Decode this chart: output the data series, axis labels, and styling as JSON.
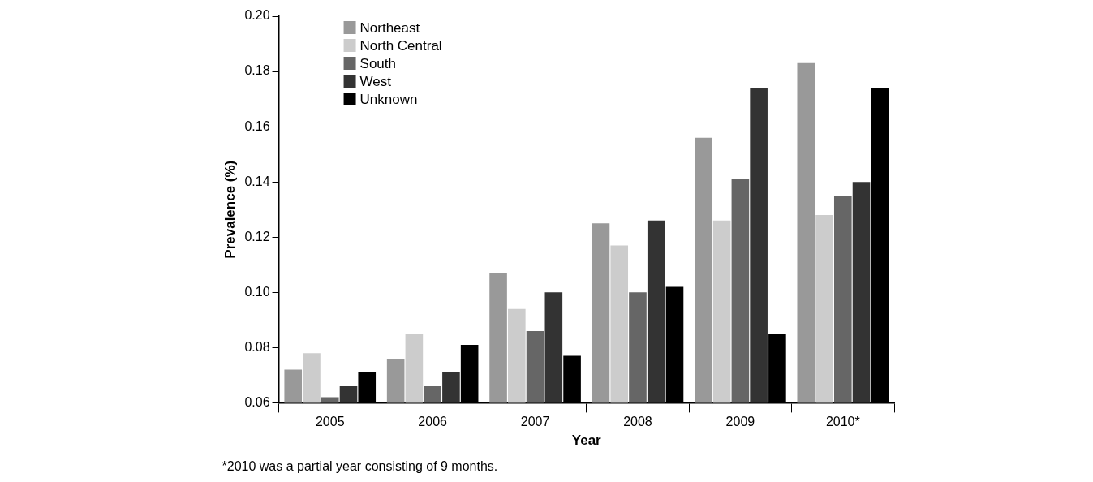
{
  "chart_data": {
    "type": "bar",
    "categories": [
      "2005",
      "2006",
      "2007",
      "2008",
      "2009",
      "2010*"
    ],
    "series": [
      {
        "name": "Northeast",
        "color": "#999999",
        "values": [
          0.072,
          0.076,
          0.107,
          0.125,
          0.156,
          0.183
        ]
      },
      {
        "name": "North Central",
        "color": "#cccccc",
        "values": [
          0.078,
          0.085,
          0.094,
          0.117,
          0.126,
          0.128
        ]
      },
      {
        "name": "South",
        "color": "#666666",
        "values": [
          0.062,
          0.066,
          0.086,
          0.1,
          0.141,
          0.135
        ]
      },
      {
        "name": "West",
        "color": "#333333",
        "values": [
          0.066,
          0.071,
          0.1,
          0.126,
          0.174,
          0.14
        ]
      },
      {
        "name": "Unknown",
        "color": "#000000",
        "values": [
          0.071,
          0.081,
          0.077,
          0.102,
          0.085,
          0.174
        ]
      }
    ],
    "xlabel": "Year",
    "ylabel": "Prevalence (%)",
    "ylim": [
      0.06,
      0.2
    ],
    "yticks": [
      {
        "value": 0.06,
        "label": "0.06"
      },
      {
        "value": 0.08,
        "label": "0.08"
      },
      {
        "value": 0.1,
        "label": "0.10"
      },
      {
        "value": 0.12,
        "label": "0.12"
      },
      {
        "value": 0.14,
        "label": "0.14"
      },
      {
        "value": 0.16,
        "label": "0.16"
      },
      {
        "value": 0.18,
        "label": "0.18"
      },
      {
        "value": 0.2,
        "label": "0.20"
      }
    ],
    "grid": false,
    "legend": "top left",
    "annotations": [
      "*2010 was a partial year consisting of 9 months."
    ]
  }
}
